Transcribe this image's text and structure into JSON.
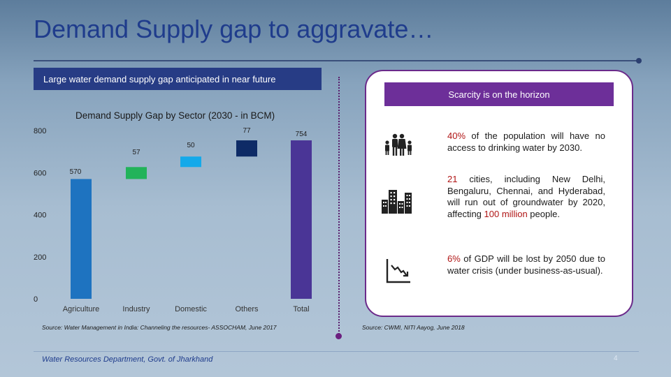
{
  "slide": {
    "title": "Demand Supply gap to aggravate…",
    "left_header": "Large  water demand supply gap anticipated in near future",
    "right_header": "Scarcity is on the horizon",
    "footer": "Water Resources Department, Govt. of Jharkhand",
    "page_number": "4"
  },
  "chart_data": {
    "type": "bar",
    "title": "Demand Supply Gap by Sector (2030 - in BCM)",
    "categories": [
      "Agriculture",
      "Industry",
      "Domestic",
      "Others",
      "Total"
    ],
    "values": [
      570,
      57,
      50,
      77,
      754
    ],
    "value_labels": [
      "570",
      "57",
      "50",
      "77",
      "754"
    ],
    "ylim": [
      0,
      850
    ],
    "yticks": [
      "0",
      "200",
      "400",
      "600",
      "800"
    ],
    "colors": [
      "#1e73c0",
      "#22b35a",
      "#14a9ea",
      "#0e2b66",
      "#4a3596"
    ],
    "grid": false
  },
  "sources": {
    "left": "Source: Water Management in India: Channeling the resources- ASSOCHAM, June 2017",
    "right": "Source: CWMI, NITI Aayog, June 2018"
  },
  "facts": [
    {
      "icon": "family-icon",
      "hl": "40%",
      "rest": " of the population will have no access to drinking water by 2030."
    },
    {
      "icon": "buildings-icon",
      "hl": "21",
      "rest1": " cities, including New Delhi, Bengaluru, Chennai, and Hyderabad, will run out of groundwater by 2020, affecting ",
      "hl2": "100 million",
      "rest2": " people."
    },
    {
      "icon": "decline-chart-icon",
      "hl": "6%",
      "rest": " of GDP will be lost by 2050 due to water crisis (under business-as-usual)."
    }
  ]
}
